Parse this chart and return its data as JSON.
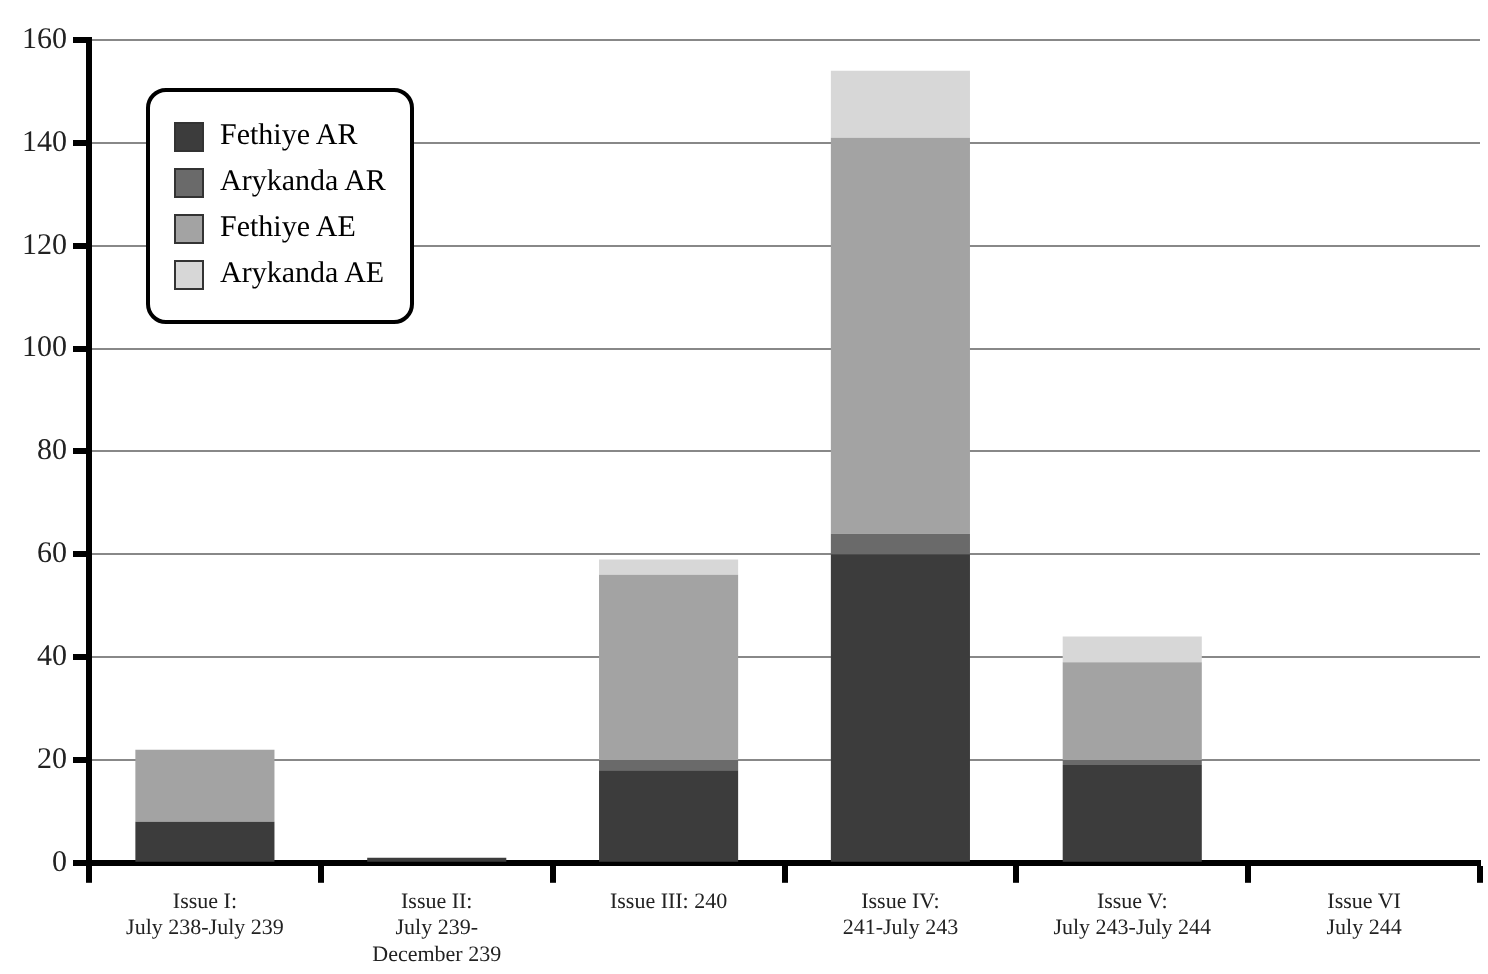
{
  "chart_data": {
    "type": "bar",
    "stacked": true,
    "categories": [
      "Issue I:\nJuly 238-July 239",
      "Issue II:\nJuly 239-\nDecember 239",
      "Issue III: 240",
      "Issue IV:\n241-July 243",
      "Issue V:\nJuly 243-July 244",
      "Issue VI\nJuly 244"
    ],
    "series": [
      {
        "name": "Fethiye AR",
        "color": "#3c3c3c",
        "values": [
          8,
          1,
          18,
          60,
          19,
          0
        ]
      },
      {
        "name": "Arykanda AR",
        "color": "#6a6a6a",
        "values": [
          0,
          0,
          2,
          4,
          1,
          0
        ]
      },
      {
        "name": "Fethiye AE",
        "color": "#a3a3a3",
        "values": [
          14,
          0,
          36,
          77,
          19,
          0
        ]
      },
      {
        "name": "Arykanda AE",
        "color": "#d7d7d7",
        "values": [
          0,
          0,
          3,
          13,
          5,
          0
        ]
      }
    ],
    "ylim": [
      0,
      160
    ],
    "yticks": [
      0,
      20,
      40,
      60,
      80,
      100,
      120,
      140,
      160
    ],
    "grid": "y",
    "legend": "top left"
  }
}
